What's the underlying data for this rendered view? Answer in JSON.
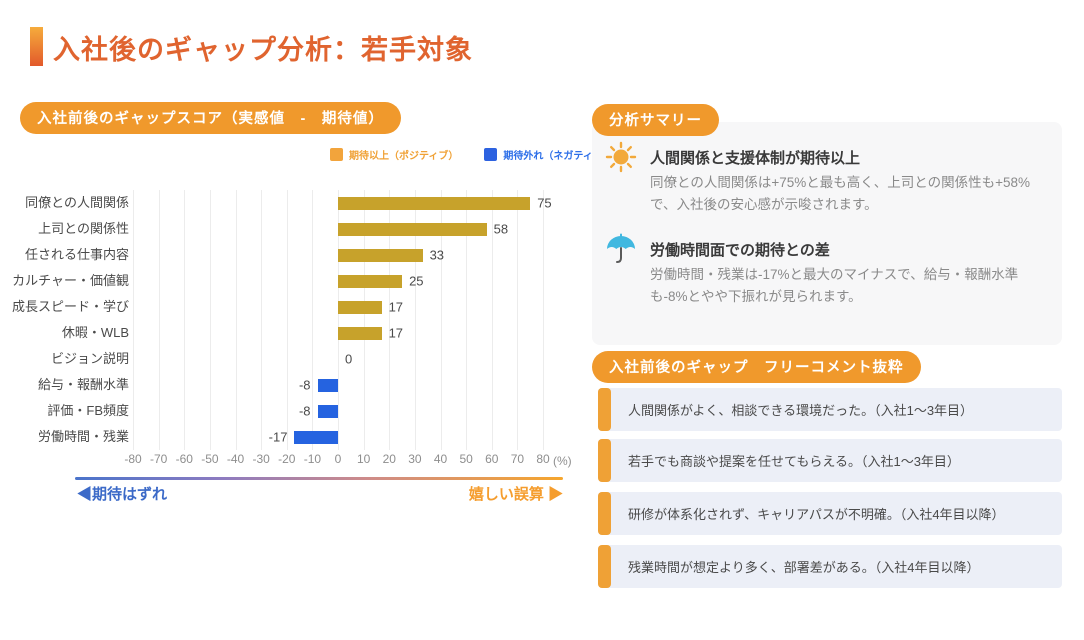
{
  "page": {
    "title": "入社後のギャップ分析：若手対象"
  },
  "chart_panel": {
    "badge": "入社前後のギャップスコア（実感値　-　期待値）",
    "legend": [
      {
        "label": "期待以上（ポジティブ）",
        "color": "#F2A43C"
      },
      {
        "label": "期待外れ（ネガティブ）",
        "color": "#2D62E0"
      }
    ],
    "axis_left_label": "◀期待はずれ",
    "axis_right_label": "嬉しい誤算 ▶",
    "unit_label": "(%)"
  },
  "chart_data": {
    "type": "bar",
    "orientation": "horizontal",
    "title": "入社前後のギャップスコア（実感値 - 期待値）",
    "categories": [
      "同僚との人間関係",
      "上司との関係性",
      "任される仕事内容",
      "カルチャー・価値観",
      "成長スピード・学び",
      "休暇・WLB",
      "ビジョン説明",
      "給与・報酬水準",
      "評価・FB頻度",
      "労働時間・残業"
    ],
    "values": [
      75,
      58,
      33,
      25,
      17,
      17,
      0,
      -8,
      -8,
      -17
    ],
    "xlim": [
      -80,
      80
    ],
    "xticks": [
      -80,
      -70,
      -60,
      -50,
      -40,
      -30,
      -20,
      -10,
      0,
      10,
      20,
      30,
      40,
      50,
      60,
      70,
      80
    ],
    "unit": "%",
    "grid": true,
    "positive_color": "#C7A22B",
    "negative_color": "#2563E0",
    "legend_position": "top-right"
  },
  "summary": {
    "badge": "分析サマリー",
    "items": [
      {
        "icon": "sun-icon",
        "title": "人間関係と支援体制が期待以上",
        "body": "同僚との人間関係は+75%と最も高く、上司との関係性も+58%で、入社後の安心感が示唆されます。"
      },
      {
        "icon": "umbrella-icon",
        "title": "労働時間面での期待との差",
        "body": "労働時間・残業は-17%と最大のマイナスで、給与・報酬水準も-8%とやや下振れが見られます。"
      }
    ]
  },
  "comments": {
    "badge": "入社前後のギャップ　フリーコメント抜粋",
    "items": [
      "人間関係がよく、相談できる環境だった。（入社1〜3年目）",
      "若手でも商談や提案を任せてもらえる。（入社1〜3年目）",
      "研修が体系化されず、キャリアパスが不明確。（入社4年目以降）",
      "残業時間が想定より多く、部署差がある。（入社4年目以降）"
    ]
  }
}
